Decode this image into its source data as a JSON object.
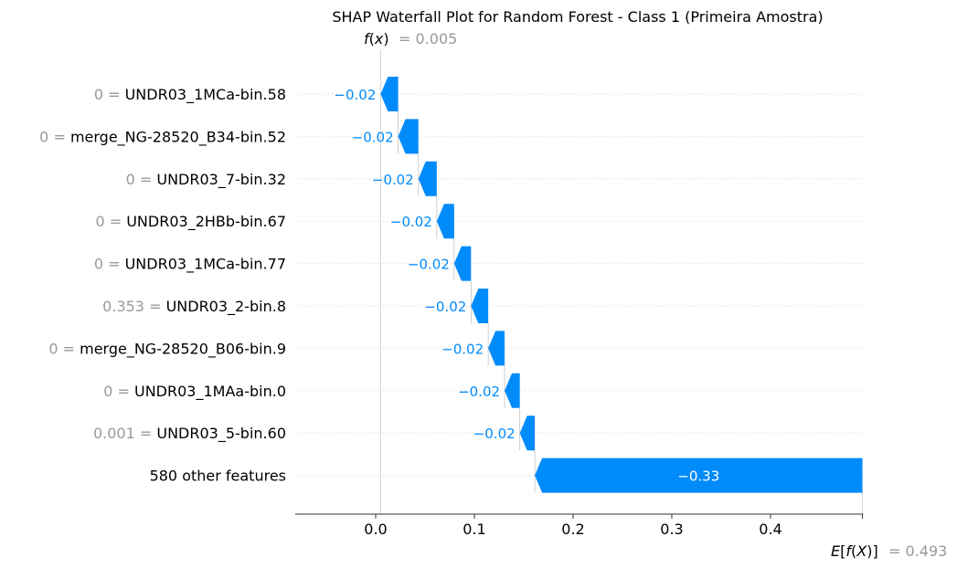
{
  "chart_data": {
    "type": "waterfall",
    "title": "SHAP Waterfall Plot for Random Forest - Class 1 (Primeira Amostra)",
    "fx": {
      "label_f": "f",
      "label_x": "x",
      "value": "= 0.005",
      "value_num": 0.005
    },
    "base": {
      "label": "E[f(X)]",
      "value": "= 0.493",
      "value_num": 0.493
    },
    "xlim": [
      -0.08,
      0.493
    ],
    "xticks": [
      {
        "value": 0.0,
        "label": "0.0"
      },
      {
        "value": 0.1,
        "label": "0.1"
      },
      {
        "value": 0.2,
        "label": "0.2"
      },
      {
        "value": 0.3,
        "label": "0.3"
      },
      {
        "value": 0.4,
        "label": "0.4"
      }
    ],
    "features": [
      {
        "value_text": "0 =",
        "name": "UNDR03_1MCa-bin.58",
        "start": 0.0228,
        "end": 0.005,
        "label": "−0.02"
      },
      {
        "value_text": "0 =",
        "name": "merge_NG-28520_B34-bin.52",
        "start": 0.0433,
        "end": 0.0228,
        "label": "−0.02"
      },
      {
        "value_text": "0 =",
        "name": "UNDR03_7-bin.32",
        "start": 0.0619,
        "end": 0.0433,
        "label": "−0.02"
      },
      {
        "value_text": "0 =",
        "name": "UNDR03_2HBb-bin.67",
        "start": 0.0795,
        "end": 0.0619,
        "label": "−0.02"
      },
      {
        "value_text": "0 =",
        "name": "UNDR03_1MCa-bin.77",
        "start": 0.0966,
        "end": 0.0795,
        "label": "−0.02"
      },
      {
        "value_text": "0.353 =",
        "name": "UNDR03_2-bin.8",
        "start": 0.114,
        "end": 0.0966,
        "label": "−0.02"
      },
      {
        "value_text": "0 =",
        "name": "merge_NG-28520_B06-bin.9",
        "start": 0.1306,
        "end": 0.114,
        "label": "−0.02"
      },
      {
        "value_text": "0 =",
        "name": "UNDR03_1MAa-bin.0",
        "start": 0.146,
        "end": 0.1306,
        "label": "−0.02"
      },
      {
        "value_text": "0.001 =",
        "name": "UNDR03_5-bin.60",
        "start": 0.1612,
        "end": 0.146,
        "label": "−0.02"
      },
      {
        "value_text": "",
        "name": "580 other features",
        "start": 0.493,
        "end": 0.1612,
        "label": "−0.33"
      }
    ],
    "colors": {
      "negative": "#008bfb",
      "feature_value": "#999999",
      "feature_name": "#000000",
      "grid": "#cccccc",
      "connector": "#bbbbbb"
    }
  }
}
